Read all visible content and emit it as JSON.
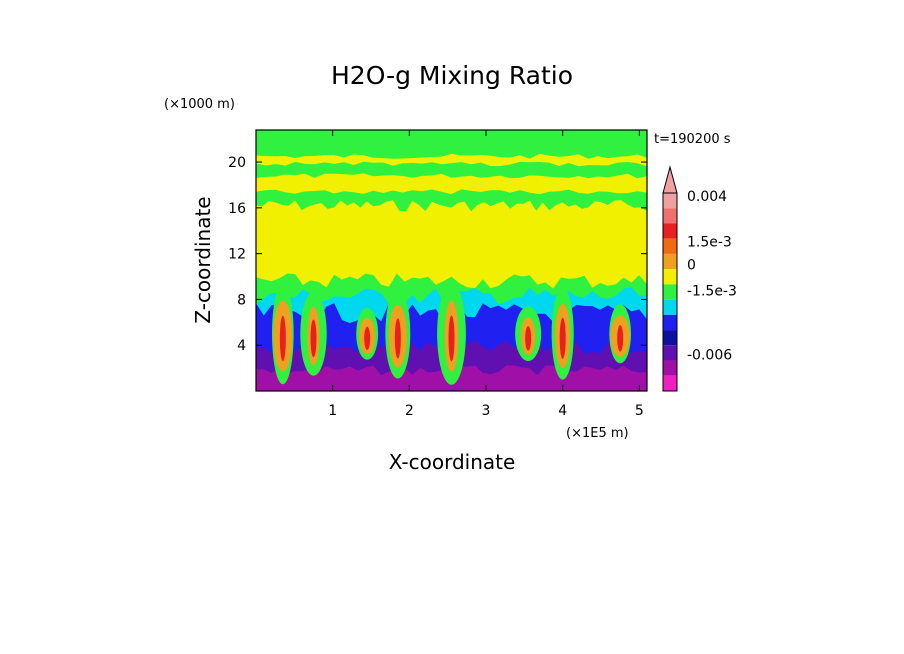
{
  "chart_data": {
    "type": "heatmap",
    "title": "H2O-g Mixing Ratio",
    "xlabel": "X-coordinate",
    "ylabel": "Z-coordinate",
    "x_unit": "(×1E5 m)",
    "y_unit": "(×1000 m)",
    "time_label": "t=190200 s",
    "xlim": [
      0,
      5.1
    ],
    "ylim": [
      0,
      22.8
    ],
    "x_ticks": [
      1,
      2,
      3,
      4,
      5
    ],
    "y_ticks": [
      4,
      8,
      12,
      16,
      20
    ],
    "x_tick_labels": [
      "1",
      "2",
      "3",
      "4",
      "5"
    ],
    "y_tick_labels": [
      "4",
      "8",
      "12",
      "16",
      "20"
    ],
    "colorbar": {
      "levels": [
        "0.004",
        "1.5e-3",
        "0",
        "-1.5e-3",
        "-0.006"
      ],
      "colors_top_to_bottom": [
        "#f0a0a0",
        "#f07070",
        "#e82020",
        "#f06a10",
        "#f0a020",
        "#f0f000",
        "#30f040",
        "#00d8f0",
        "#2020f0",
        "#1010a0",
        "#6010b0",
        "#a010a8",
        "#f020c0"
      ],
      "extend_top": true
    },
    "layers": [
      {
        "name": "upper-band",
        "color": "#30f040",
        "z_range": [
          15,
          22.8
        ]
      },
      {
        "name": "upper-dry-bands",
        "color": "#f0f000",
        "z_range": [
          17,
          21
        ]
      },
      {
        "name": "mid-band",
        "color": "#f0f000",
        "z_range": [
          9,
          16
        ]
      },
      {
        "name": "transition-band",
        "color": "#30f040",
        "z_range": [
          7,
          10
        ]
      },
      {
        "name": "lower-band",
        "color": "#00d8f0",
        "z_range": [
          4,
          8
        ]
      },
      {
        "name": "boundary-layer",
        "color": "#2020f0",
        "z_range": [
          1,
          6
        ]
      },
      {
        "name": "surface-layer",
        "color": "#6010b0",
        "z_range": [
          0,
          3
        ]
      }
    ]
  }
}
